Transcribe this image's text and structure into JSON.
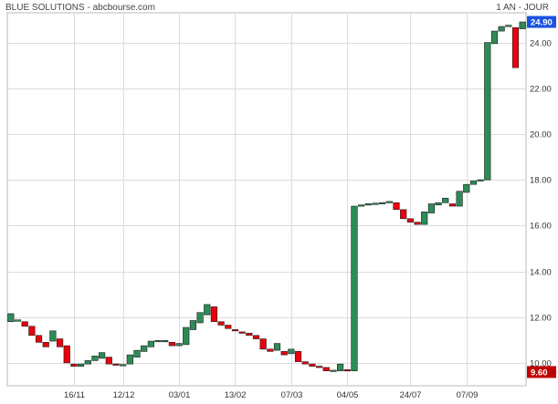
{
  "header": {
    "title": "BLUE SOLUTIONS - abcbourse.com",
    "period": "1 AN - JOUR"
  },
  "colors": {
    "up": "#2e8b57",
    "down": "#e8000d",
    "grid": "#dcdcdc",
    "last_badge": "#1a53e0",
    "min_badge": "#c00000"
  },
  "badges": {
    "last": "24.90",
    "min": "9.60"
  },
  "chart_data": {
    "type": "candlestick",
    "title": "BLUE SOLUTIONS - abcbourse.com",
    "period": "1 AN - JOUR",
    "xlabel": "",
    "ylabel": "",
    "ylim": [
      9.0,
      25.3
    ],
    "grid": true,
    "y_ticks": [
      "10.00",
      "12.00",
      "14.00",
      "16.00",
      "18.00",
      "20.00",
      "22.00",
      "24.00"
    ],
    "x_ticks": [
      "16/11",
      "12/12",
      "03/01",
      "13/02",
      "07/03",
      "04/05",
      "24/07",
      "07/09"
    ],
    "last_value": 24.9,
    "min_value": 9.6,
    "candles": [
      {
        "o": 11.8,
        "c": 12.15
      },
      {
        "o": 11.85,
        "c": 11.85
      },
      {
        "o": 11.8,
        "c": 11.6
      },
      {
        "o": 11.6,
        "c": 11.2
      },
      {
        "o": 11.2,
        "c": 10.9
      },
      {
        "o": 10.9,
        "c": 10.7
      },
      {
        "o": 10.95,
        "c": 11.4
      },
      {
        "o": 11.05,
        "c": 10.7
      },
      {
        "o": 10.75,
        "c": 10.0
      },
      {
        "o": 9.95,
        "c": 9.85
      },
      {
        "o": 9.85,
        "c": 9.95
      },
      {
        "o": 9.95,
        "c": 10.1
      },
      {
        "o": 10.1,
        "c": 10.3
      },
      {
        "o": 10.2,
        "c": 10.45
      },
      {
        "o": 10.25,
        "c": 9.95
      },
      {
        "o": 9.95,
        "c": 9.9
      },
      {
        "o": 9.9,
        "c": 9.9
      },
      {
        "o": 9.95,
        "c": 10.35
      },
      {
        "o": 10.25,
        "c": 10.55
      },
      {
        "o": 10.5,
        "c": 10.75
      },
      {
        "o": 10.7,
        "c": 10.95
      },
      {
        "o": 10.95,
        "c": 10.95
      },
      {
        "o": 10.95,
        "c": 10.95
      },
      {
        "o": 10.9,
        "c": 10.75
      },
      {
        "o": 10.75,
        "c": 10.85
      },
      {
        "o": 10.8,
        "c": 11.55
      },
      {
        "o": 11.45,
        "c": 11.85
      },
      {
        "o": 11.75,
        "c": 12.2
      },
      {
        "o": 12.1,
        "c": 12.55
      },
      {
        "o": 12.45,
        "c": 11.8
      },
      {
        "o": 11.8,
        "c": 11.65
      },
      {
        "o": 11.65,
        "c": 11.5
      },
      {
        "o": 11.45,
        "c": 11.4
      },
      {
        "o": 11.35,
        "c": 11.3
      },
      {
        "o": 11.3,
        "c": 11.2
      },
      {
        "o": 11.2,
        "c": 11.05
      },
      {
        "o": 11.05,
        "c": 10.6
      },
      {
        "o": 10.6,
        "c": 10.5
      },
      {
        "o": 10.55,
        "c": 10.85
      },
      {
        "o": 10.5,
        "c": 10.35
      },
      {
        "o": 10.4,
        "c": 10.6
      },
      {
        "o": 10.5,
        "c": 10.05
      },
      {
        "o": 10.05,
        "c": 9.95
      },
      {
        "o": 9.95,
        "c": 9.85
      },
      {
        "o": 9.85,
        "c": 9.8
      },
      {
        "o": 9.8,
        "c": 9.65
      },
      {
        "o": 9.65,
        "c": 9.65
      },
      {
        "o": 9.65,
        "c": 9.95
      },
      {
        "o": 9.7,
        "c": 9.65
      },
      {
        "o": 9.65,
        "c": 16.85
      },
      {
        "o": 16.85,
        "c": 16.9
      },
      {
        "o": 16.9,
        "c": 16.95
      },
      {
        "o": 16.95,
        "c": 16.95
      },
      {
        "o": 16.95,
        "c": 17.0
      },
      {
        "o": 17.0,
        "c": 17.05
      },
      {
        "o": 17.0,
        "c": 16.7
      },
      {
        "o": 16.7,
        "c": 16.3
      },
      {
        "o": 16.3,
        "c": 16.15
      },
      {
        "o": 16.15,
        "c": 16.05
      },
      {
        "o": 16.05,
        "c": 16.6
      },
      {
        "o": 16.55,
        "c": 16.95
      },
      {
        "o": 16.9,
        "c": 17.0
      },
      {
        "o": 17.0,
        "c": 17.2
      },
      {
        "o": 16.95,
        "c": 16.85
      },
      {
        "o": 16.85,
        "c": 17.5
      },
      {
        "o": 17.45,
        "c": 17.8
      },
      {
        "o": 17.8,
        "c": 17.95
      },
      {
        "o": 17.95,
        "c": 18.0
      },
      {
        "o": 18.0,
        "c": 24.0
      },
      {
        "o": 23.95,
        "c": 24.5
      },
      {
        "o": 24.5,
        "c": 24.7
      },
      {
        "o": 24.7,
        "c": 24.75
      },
      {
        "o": 24.65,
        "c": 22.9
      },
      {
        "o": 24.6,
        "c": 24.9
      }
    ]
  }
}
